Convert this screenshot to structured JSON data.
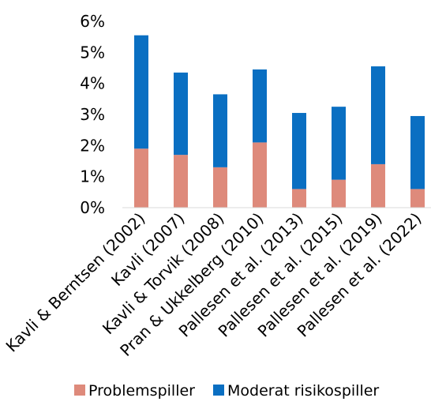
{
  "chart_data": {
    "type": "bar",
    "stacked": true,
    "categories": [
      "Kavli & Berntsen (2002)",
      "Kavli (2007)",
      "Kavli & Torvik (2008)",
      "Pran & Ukkelberg (2010)",
      "Pallesen et al. (2013)",
      "Pallesen et al. (2015)",
      "Pallesen et al. (2019)",
      "Pallesen et al. (2022)"
    ],
    "series": [
      {
        "name": "Problemspiller",
        "color": "#de8a7b",
        "values": [
          1.9,
          1.7,
          1.3,
          2.1,
          0.6,
          0.9,
          1.4,
          0.6
        ]
      },
      {
        "name": "Moderat risikospiller",
        "color": "#0a6fc2",
        "values": [
          3.65,
          2.65,
          2.35,
          2.35,
          2.45,
          2.35,
          3.15,
          2.35
        ]
      }
    ],
    "ylim": [
      0,
      6
    ],
    "yticks": [
      "0%",
      "1%",
      "2%",
      "3%",
      "4%",
      "5%",
      "6%"
    ],
    "grid": false,
    "legend_position": "bottom"
  }
}
